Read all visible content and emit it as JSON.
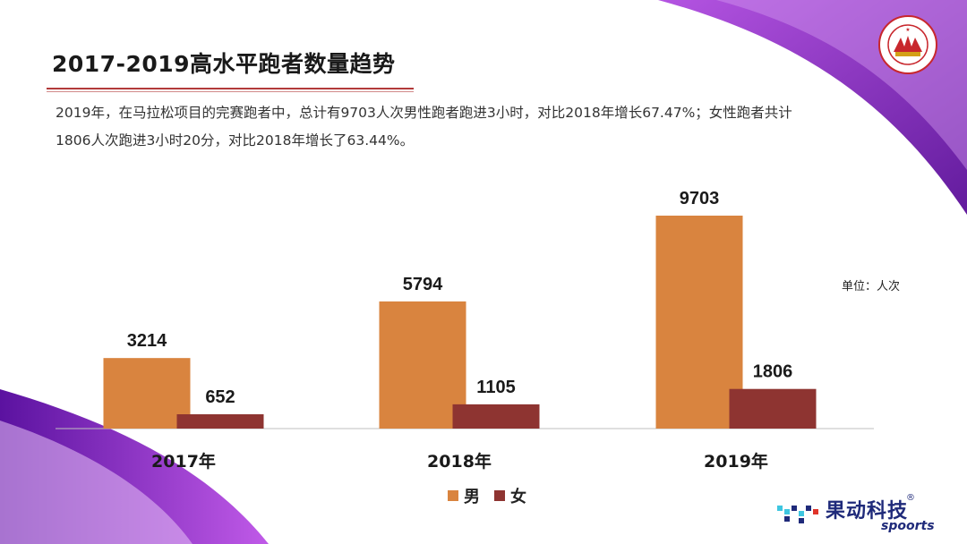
{
  "slide": {
    "title": "2017-2019高水平跑者数量趋势",
    "description": "2019年，在马拉松项目的完赛跑者中，总计有9703人次男性跑者跑进3小时，对比2018年增长67.47%；女性跑者共计1806人次跑进3小时20分，对比2018年增长了63.44%。",
    "unit_label": "单位：人次"
  },
  "brand": {
    "name_cn": "果动科技",
    "name_en": "spoorts",
    "registered_mark": "®",
    "logo_text": "CHINESE ATHLETICS ASSOCIATION 中国田径协会"
  },
  "colors": {
    "male": "#d9843f",
    "female": "#8e3431",
    "purple": "#7a1fb2",
    "title_rule": "#b23a3a"
  },
  "chart_data": {
    "type": "bar",
    "categories": [
      "2017年",
      "2018年",
      "2019年"
    ],
    "series": [
      {
        "name": "男",
        "values": [
          3214,
          5794,
          9703
        ]
      },
      {
        "name": "女",
        "values": [
          652,
          1105,
          1806
        ]
      }
    ],
    "ylim": [
      0,
      9703
    ],
    "legend_position": "bottom",
    "grid": false,
    "data_labels": true
  }
}
